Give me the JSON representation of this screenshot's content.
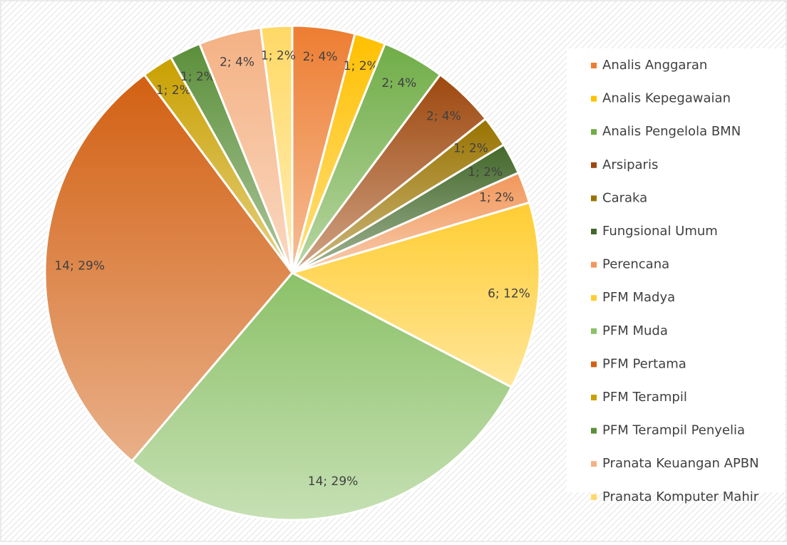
{
  "chart_data": {
    "type": "pie",
    "categories": [
      "Analis Anggaran",
      "Analis Kepegawaian",
      "Analis Pengelola BMN",
      "Arsiparis",
      "Caraka",
      "Fungsional Umum",
      "Perencana",
      "PFM Madya",
      "PFM Muda",
      "PFM Pertama",
      "PFM Terampil",
      "PFM Terampil Penyelia",
      "Pranata Keuangan APBN",
      "Pranata Komputer Mahir"
    ],
    "values": [
      2,
      1,
      2,
      2,
      1,
      1,
      1,
      6,
      14,
      14,
      1,
      1,
      2,
      1
    ],
    "value_labels": [
      "2; 4%",
      "1; 2%",
      "2; 4%",
      "2; 4%",
      "1; 2%",
      "1; 2%",
      "1; 2%",
      "6; 12%",
      "14; 29%",
      "14; 29%",
      "1; 2%",
      "1; 2%",
      "2; 4%",
      "1; 2%"
    ],
    "colors": [
      "#ed7d31",
      "#ffc000",
      "#70ad47",
      "#9e480e",
      "#997300",
      "#43682b",
      "#f1975a",
      "#ffcd33",
      "#8cc168",
      "#d26012",
      "#c9a000",
      "#5b8f3a",
      "#f4b183",
      "#ffd966"
    ],
    "legend": "right"
  }
}
